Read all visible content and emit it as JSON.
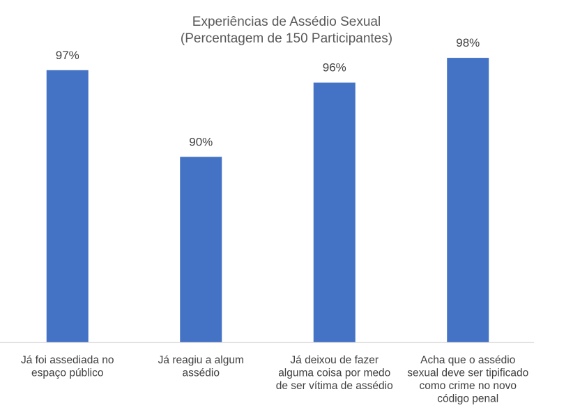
{
  "chart_data": {
    "type": "bar",
    "title": [
      "Experiências de Assédio Sexual",
      "(Percentagem de 150 Participantes)"
    ],
    "categories": [
      [
        "Já foi assediada no",
        "espaço público"
      ],
      [
        "Já reagiu a algum",
        "assédio"
      ],
      [
        "Já deixou de fazer",
        "alguma coisa por medo",
        "de ser vítima de assédio"
      ],
      [
        "Acha que o assédio",
        "sexual deve ser tipificado",
        "como crime no novo",
        "código penal"
      ]
    ],
    "values": [
      97,
      90,
      96,
      98
    ],
    "data_labels": [
      "97%",
      "90%",
      "96%",
      "98%"
    ],
    "ylim": [
      75,
      100
    ],
    "grid": false,
    "legend": "none",
    "bar_color": "#4472C4",
    "axis_color": "#D9D9D9",
    "text_color": "#404040"
  }
}
